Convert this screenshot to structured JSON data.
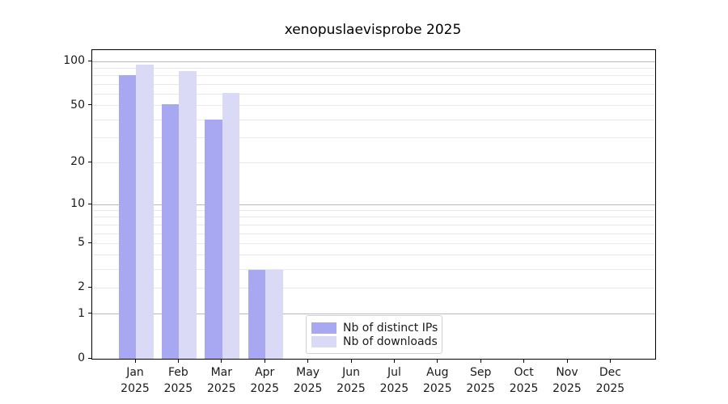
{
  "chart_data": {
    "type": "bar",
    "title": "xenopuslaevisprobe 2025",
    "x_tick_labels": [
      [
        "Jan",
        "2025"
      ],
      [
        "Feb",
        "2025"
      ],
      [
        "Mar",
        "2025"
      ],
      [
        "Apr",
        "2025"
      ],
      [
        "May",
        "2025"
      ],
      [
        "Jun",
        "2025"
      ],
      [
        "Jul",
        "2025"
      ],
      [
        "Aug",
        "2025"
      ],
      [
        "Sep",
        "2025"
      ],
      [
        "Oct",
        "2025"
      ],
      [
        "Nov",
        "2025"
      ],
      [
        "Dec",
        "2025"
      ]
    ],
    "series": [
      {
        "name": "Nb of distinct IPs",
        "color": "#a8a8f2",
        "values": [
          81,
          51,
          40,
          3,
          0,
          0,
          0,
          0,
          0,
          0,
          0,
          0
        ]
      },
      {
        "name": "Nb of downloads",
        "color": "#dadaf6",
        "values": [
          96,
          86,
          61,
          3,
          0,
          0,
          0,
          0,
          0,
          0,
          0,
          0
        ]
      }
    ],
    "yscale": "log1p",
    "ylim": [
      0,
      120
    ],
    "y_tick_labels": [
      0,
      1,
      2,
      5,
      10,
      20,
      50,
      100
    ],
    "y_gridlines_major": [
      1,
      10,
      100
    ],
    "y_gridlines_minor": [
      2,
      3,
      4,
      5,
      6,
      7,
      8,
      9,
      20,
      30,
      40,
      50,
      60,
      70,
      80,
      90
    ],
    "grid": true,
    "legend": {
      "position": "lower-center",
      "entries": [
        "Nb of distinct IPs",
        "Nb of downloads"
      ]
    },
    "colors": {
      "grid_major": "#b9b9b9",
      "grid_minor": "#e9e9e9",
      "axis": "#000000",
      "text": "#1a1a1a"
    }
  }
}
